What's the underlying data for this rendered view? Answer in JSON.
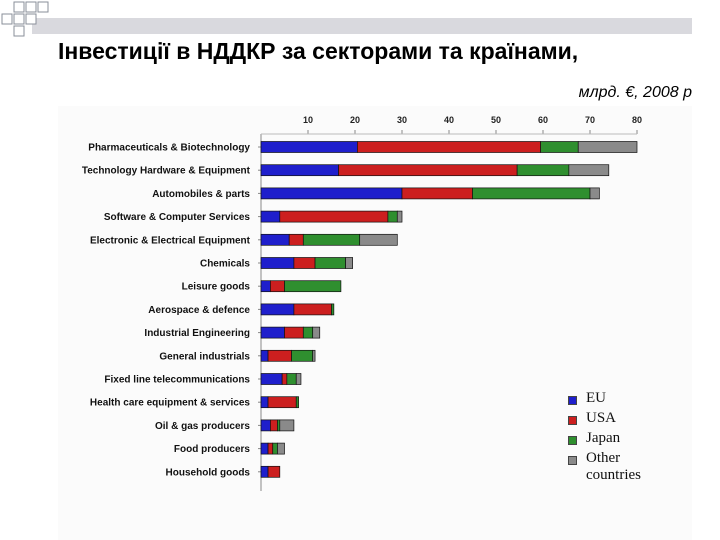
{
  "header": {
    "title": "Інвестиції в НДДКР за секторами та країнами,",
    "subtitle": "млрд. €, 2008 р"
  },
  "chart_data": {
    "type": "bar",
    "orientation": "horizontal",
    "stacked": true,
    "title": "",
    "xlabel": "",
    "ylabel": "",
    "xlim": [
      0,
      80
    ],
    "x_ticks": [
      10,
      20,
      30,
      40,
      50,
      60,
      70,
      80
    ],
    "axis_position": "top",
    "grid": false,
    "legend_position": "bottom-right",
    "categories": [
      "Pharmaceuticals & Biotechnology",
      "Technology Hardware & Equipment",
      "Automobiles & parts",
      "Software & Computer Services",
      "Electronic & Electrical Equipment",
      "Chemicals",
      "Leisure goods",
      "Aerospace & defence",
      "Industrial Engineering",
      "General industrials",
      "Fixed line telecommunications",
      "Health care equipment & services",
      "Oil & gas producers",
      "Food producers",
      "Household goods"
    ],
    "series": [
      {
        "name": "EU",
        "color": "#1f1fcc",
        "values": [
          20.5,
          16.5,
          30,
          4,
          6,
          7,
          2,
          7,
          5,
          1.5,
          4.5,
          1.5,
          2,
          1.5,
          1.5
        ]
      },
      {
        "name": "USA",
        "color": "#cc1f1f",
        "values": [
          39,
          38,
          15,
          23,
          3,
          4.5,
          3,
          8,
          4,
          5,
          1,
          6,
          1.5,
          1,
          2.5
        ]
      },
      {
        "name": "Japan",
        "color": "#2f8f2f",
        "values": [
          8,
          11,
          25,
          2,
          12,
          6.5,
          12,
          0.5,
          2,
          4.5,
          2,
          0.5,
          0.5,
          1,
          0
        ]
      },
      {
        "name": "Other countries",
        "color": "#8a8a8a",
        "values": [
          12.5,
          8.5,
          2,
          1,
          8,
          1.5,
          0,
          0,
          1.5,
          0.5,
          1,
          0,
          3,
          1.5,
          0
        ]
      }
    ]
  },
  "legend": {
    "items": [
      {
        "label": "EU",
        "color": "#1f1fcc"
      },
      {
        "label": "USA",
        "color": "#cc1f1f"
      },
      {
        "label": "Japan",
        "color": "#2f8f2f"
      },
      {
        "label": "Other countries",
        "color": "#8a8a8a"
      }
    ]
  }
}
